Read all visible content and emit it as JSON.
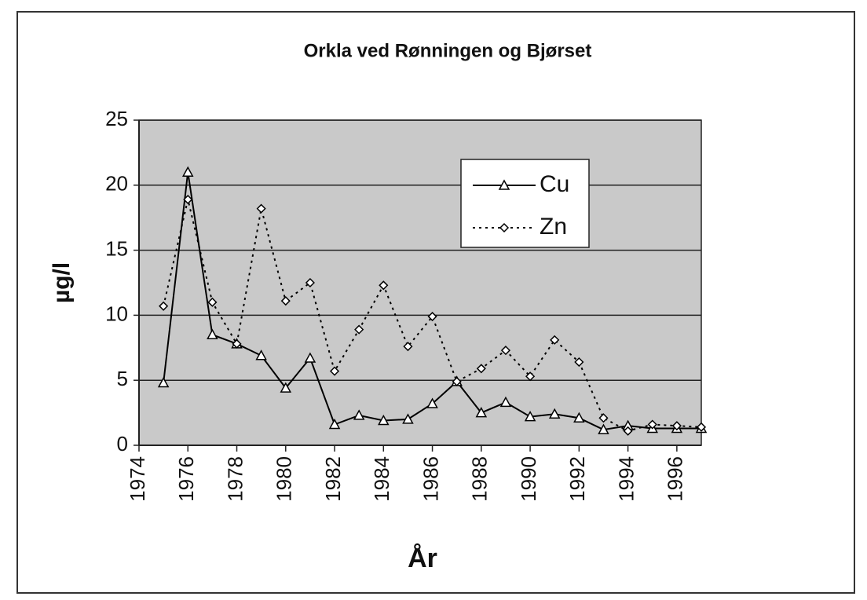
{
  "chart_data": {
    "type": "line",
    "title": "Orkla ved Rønningen og Bjørset",
    "x_label": "År",
    "y_label": "µg/l",
    "x": [
      1975,
      1976,
      1977,
      1978,
      1979,
      1980,
      1981,
      1982,
      1983,
      1984,
      1985,
      1986,
      1987,
      1988,
      1989,
      1990,
      1991,
      1992,
      1993,
      1994,
      1995,
      1996,
      1997
    ],
    "series": [
      {
        "name": "Cu",
        "color": "#000000",
        "linestyle": "solid",
        "marker": "triangle",
        "values": [
          4.8,
          21,
          8.5,
          7.8,
          6.9,
          4.4,
          6.7,
          1.6,
          2.3,
          1.9,
          2.0,
          3.2,
          4.9,
          2.5,
          3.3,
          2.2,
          2.4,
          2.1,
          1.2,
          1.5,
          1.3,
          1.3,
          1.3
        ]
      },
      {
        "name": "Zn",
        "color": "#000000",
        "linestyle": "dotted",
        "marker": "diamond",
        "values": [
          10.7,
          18.9,
          11.0,
          7.8,
          18.2,
          11.1,
          12.5,
          5.7,
          8.9,
          12.3,
          7.6,
          9.9,
          4.9,
          5.9,
          7.3,
          5.3,
          8.1,
          6.4,
          2.1,
          1.1,
          1.6,
          1.5,
          1.4
        ]
      }
    ],
    "xlim": [
      1974,
      1997
    ],
    "xticks": [
      1974,
      1976,
      1978,
      1980,
      1982,
      1984,
      1986,
      1988,
      1990,
      1992,
      1994,
      1996
    ],
    "ylim": [
      0,
      25
    ],
    "yticks": [
      0,
      5,
      10,
      15,
      20,
      25
    ],
    "grid": true,
    "legend": "upper right"
  }
}
